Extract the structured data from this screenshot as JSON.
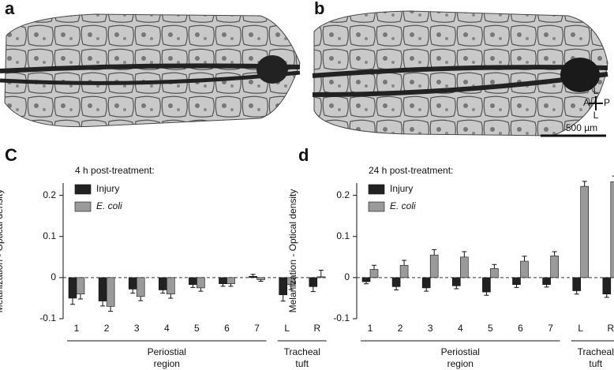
{
  "images": [
    {
      "panel": "a"
    },
    {
      "panel": "b",
      "scale_bar": "500 µm",
      "orientation": {
        "anterior": "A",
        "posterior": "P",
        "lateral_top": "L",
        "lateral_bottom": "L"
      }
    }
  ],
  "chart_data": [
    {
      "type": "bar",
      "panel": "C",
      "annotation": "4 h post-treatment:",
      "ylabel": "Melanization - Optical density",
      "categories": [
        "1",
        "2",
        "3",
        "4",
        "5",
        "6",
        "7",
        "L",
        "R"
      ],
      "groups": [
        [
          "Periostial",
          "region"
        ],
        [
          "Tracheal",
          "tuft"
        ]
      ],
      "series": [
        {
          "name": "Injury",
          "color": "#222222",
          "values": [
            -0.05,
            -0.057,
            -0.028,
            -0.03,
            -0.017,
            -0.015,
            0.003,
            -0.042,
            -0.022
          ],
          "errors": [
            0.015,
            0.012,
            0.01,
            0.008,
            0.007,
            0.006,
            0.005,
            0.015,
            0.012
          ]
        },
        {
          "name": "E. coli",
          "color": "#9a9a9a",
          "values": [
            -0.04,
            -0.07,
            -0.046,
            -0.04,
            -0.025,
            -0.015,
            -0.005,
            -0.017,
            0.002
          ],
          "errors": [
            0.012,
            0.012,
            0.01,
            0.01,
            0.008,
            0.006,
            0.004,
            0.012,
            0.016
          ]
        }
      ],
      "ylim": [
        -0.1,
        0.23
      ],
      "yticks": [
        -0.1,
        0,
        0.1,
        0.2
      ]
    },
    {
      "type": "bar",
      "panel": "d",
      "annotation": "24 h post-treatment:",
      "ylabel": "Melanization - Optical density",
      "categories": [
        "1",
        "2",
        "3",
        "4",
        "5",
        "6",
        "7",
        "L",
        "R"
      ],
      "groups": [
        [
          "Periostial",
          "region"
        ],
        [
          "Tracheal",
          "tuft"
        ]
      ],
      "series": [
        {
          "name": "Injury",
          "color": "#222222",
          "values": [
            -0.01,
            -0.022,
            -0.025,
            -0.02,
            -0.035,
            -0.017,
            -0.017,
            -0.032,
            -0.04
          ],
          "errors": [
            0.005,
            0.008,
            0.008,
            0.007,
            0.008,
            0.007,
            0.006,
            0.008,
            0.008
          ]
        },
        {
          "name": "E. coli",
          "color": "#9a9a9a",
          "values": [
            0.02,
            0.03,
            0.055,
            0.05,
            0.022,
            0.04,
            0.053,
            0.222,
            0.233
          ],
          "errors": [
            0.01,
            0.012,
            0.013,
            0.013,
            0.01,
            0.012,
            0.01,
            0.012,
            0.014
          ]
        }
      ],
      "ylim": [
        -0.1,
        0.23
      ],
      "yticks": [
        -0.1,
        0,
        0.1,
        0.2
      ]
    }
  ]
}
